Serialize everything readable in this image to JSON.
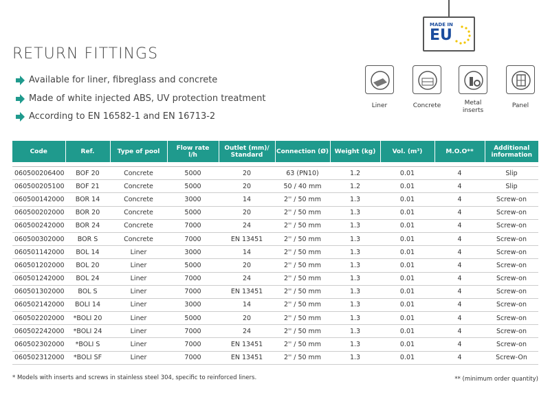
{
  "header": {
    "title": "RETURN FITTINGS",
    "bullets": [
      "Available for liner, fibreglass and concrete",
      "Made of white injected ABS, UV protection treatment",
      "According to EN 16582-1 and EN 16713-2"
    ]
  },
  "badge": {
    "line1": "MADE IN",
    "line2": "EU"
  },
  "icons": [
    "Liner",
    "Concrete",
    "Metal\ninserts",
    "Panel"
  ],
  "table": {
    "columns": [
      "Code",
      "Ref.",
      "Type of pool",
      "Flow rate\nl/h",
      "Outlet (mm)/\nStandard",
      "Connection (Ø)",
      "Weight (kg)",
      "Vol. (m³)",
      "M.O.O**",
      "Additional\ninformation"
    ],
    "rows": [
      [
        "060500206400",
        "BOF 20",
        "Concrete",
        "5000",
        "20",
        "63 (PN10)",
        "1.2",
        "0.01",
        "4",
        "Slip"
      ],
      [
        "060500205100",
        "BOF 21",
        "Concrete",
        "5000",
        "20",
        "50 / 40 mm",
        "1.2",
        "0.01",
        "4",
        "Slip"
      ],
      [
        "060500142000",
        "BOR 14",
        "Concrete",
        "3000",
        "14",
        "2'' / 50 mm",
        "1.3",
        "0.01",
        "4",
        "Screw-on"
      ],
      [
        "060500202000",
        "BOR 20",
        "Concrete",
        "5000",
        "20",
        "2'' / 50 mm",
        "1.3",
        "0.01",
        "4",
        "Screw-on"
      ],
      [
        "060500242000",
        "BOR 24",
        "Concrete",
        "7000",
        "24",
        "2'' / 50 mm",
        "1.3",
        "0.01",
        "4",
        "Screw-on"
      ],
      [
        "060500302000",
        "BOR S",
        "Concrete",
        "7000",
        "EN 13451",
        "2'' / 50 mm",
        "1.3",
        "0.01",
        "4",
        "Screw-on"
      ],
      [
        "060501142000",
        "BOL 14",
        "Liner",
        "3000",
        "14",
        "2'' / 50 mm",
        "1.3",
        "0.01",
        "4",
        "Screw-on"
      ],
      [
        "060501202000",
        "BOL 20",
        "Liner",
        "5000",
        "20",
        "2'' / 50 mm",
        "1.3",
        "0.01",
        "4",
        "Screw-on"
      ],
      [
        "060501242000",
        "BOL 24",
        "Liner",
        "7000",
        "24",
        "2'' / 50 mm",
        "1.3",
        "0.01",
        "4",
        "Screw-on"
      ],
      [
        "060501302000",
        "BOL S",
        "Liner",
        "7000",
        "EN 13451",
        "2'' / 50 mm",
        "1.3",
        "0.01",
        "4",
        "Screw-on"
      ],
      [
        "060502142000",
        "BOLI 14",
        "Liner",
        "3000",
        "14",
        "2'' / 50 mm",
        "1.3",
        "0.01",
        "4",
        "Screw-on"
      ],
      [
        "060502202000",
        "*BOLI 20",
        "Liner",
        "5000",
        "20",
        "2'' / 50 mm",
        "1.3",
        "0.01",
        "4",
        "Screw-on"
      ],
      [
        "060502242000",
        "*BOLI 24",
        "Liner",
        "7000",
        "24",
        "2'' / 50 mm",
        "1.3",
        "0.01",
        "4",
        "Screw-on"
      ],
      [
        "060502302000",
        "*BOLI S",
        "Liner",
        "7000",
        "EN 13451",
        "2'' / 50 mm",
        "1.3",
        "0.01",
        "4",
        "Screw-on"
      ],
      [
        "060502312000",
        "*BOLI SF",
        "Liner",
        "7000",
        "EN 13451",
        "2'' / 50 mm",
        "1.3",
        "0.01",
        "4",
        "Screw-On"
      ]
    ]
  },
  "footnotes": {
    "left": "* Models with inserts and screws in stainless steel 304, specific to reinforced liners.",
    "right": "** (minimum order quantity)"
  }
}
